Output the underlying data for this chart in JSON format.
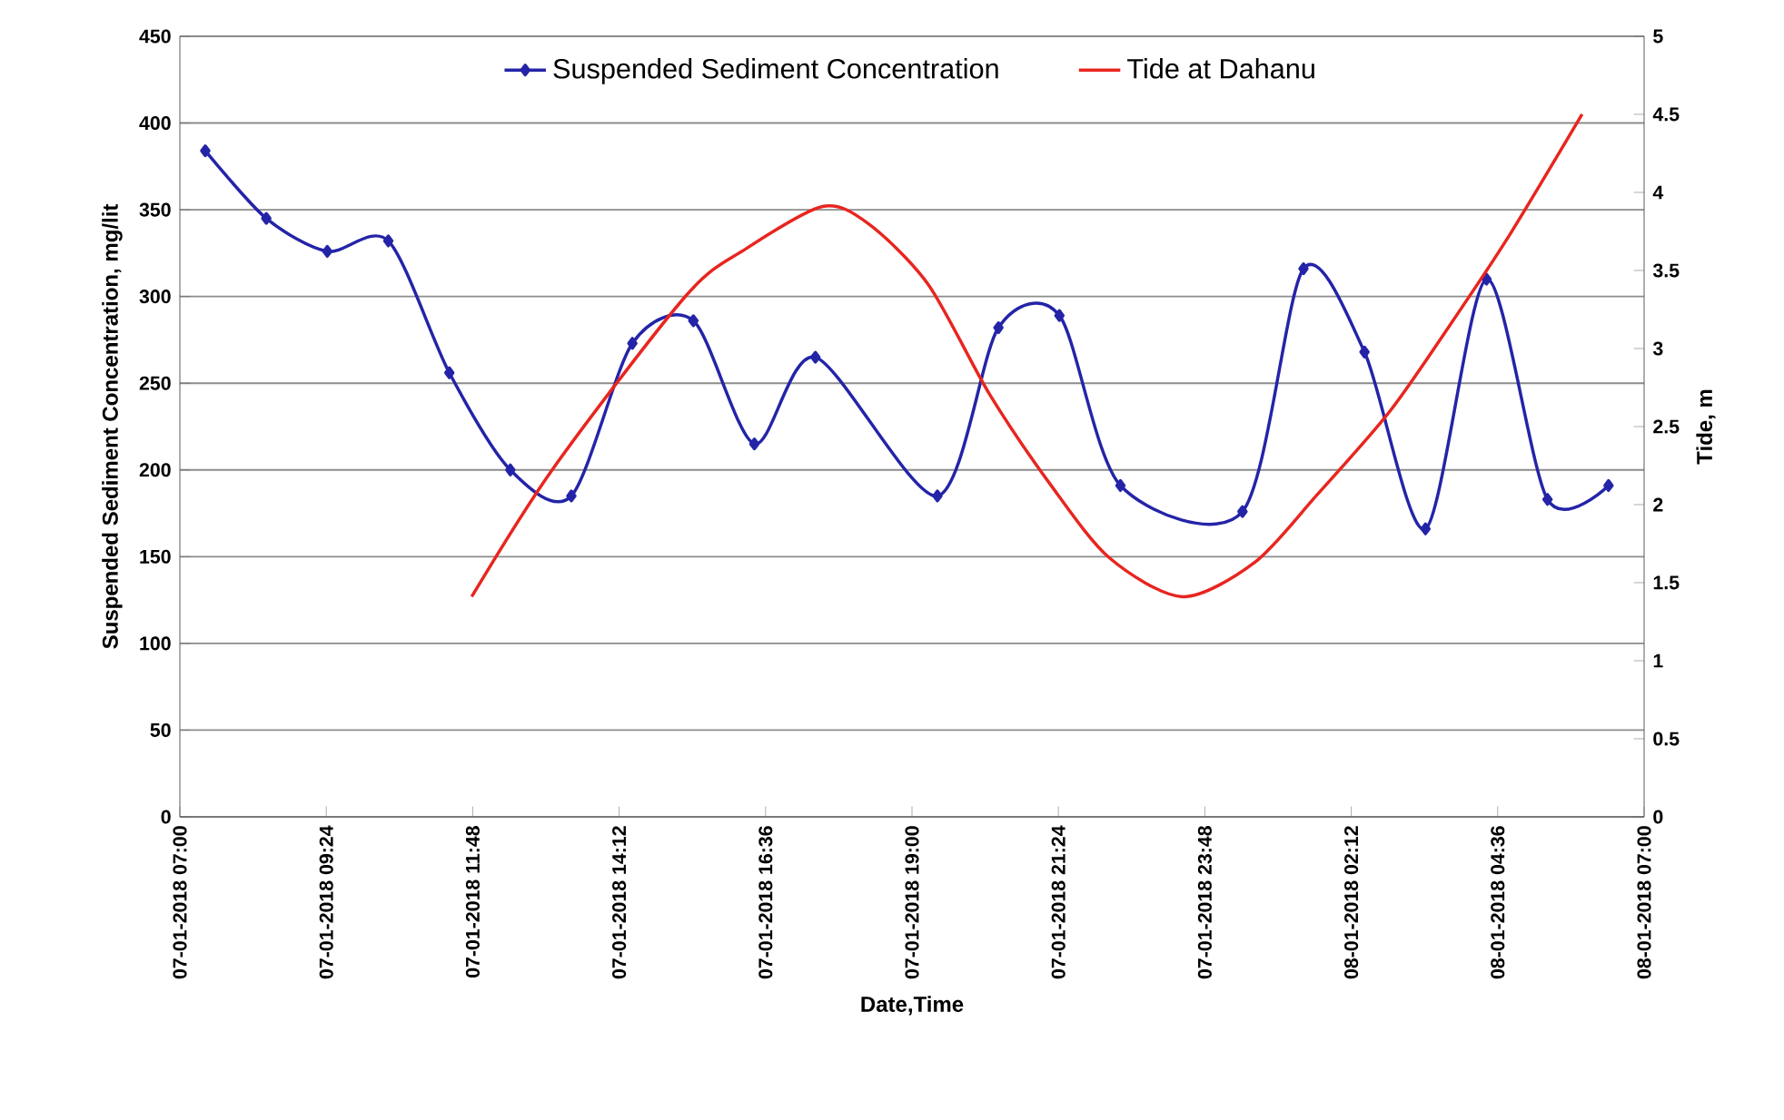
{
  "chart_data": {
    "type": "line",
    "xlabel": "Date,Time",
    "ylabel": "Suspended Sediment Concentration, mg/lit",
    "y2label": "Tide, m",
    "xlim": [
      "2018-01-07T07:00",
      "2018-01-08T07:00"
    ],
    "xticks": [
      {
        "value": "2018-01-07T07:00",
        "label": "07-01-2018 07:00"
      },
      {
        "value": "2018-01-07T09:24",
        "label": "07-01-2018 09:24"
      },
      {
        "value": "2018-01-07T11:48",
        "label": "07-01-2018 11:48"
      },
      {
        "value": "2018-01-07T14:12",
        "label": "07-01-2018 14:12"
      },
      {
        "value": "2018-01-07T16:36",
        "label": "07-01-2018 16:36"
      },
      {
        "value": "2018-01-07T19:00",
        "label": "07-01-2018 19:00"
      },
      {
        "value": "2018-01-07T21:24",
        "label": "07-01-2018 21:24"
      },
      {
        "value": "2018-01-07T23:48",
        "label": "07-01-2018 23:48"
      },
      {
        "value": "2018-01-08T02:12",
        "label": "08-01-2018 02:12"
      },
      {
        "value": "2018-01-08T04:36",
        "label": "08-01-2018 04:36"
      },
      {
        "value": "2018-01-08T07:00",
        "label": "08-01-2018 07:00"
      }
    ],
    "ylim": [
      0,
      450
    ],
    "yticks": [
      0,
      50,
      100,
      150,
      200,
      250,
      300,
      350,
      400,
      450
    ],
    "y2lim": [
      0,
      5
    ],
    "y2ticks": [
      0,
      0.5,
      1,
      1.5,
      2,
      2.5,
      3,
      3.5,
      4,
      4.5,
      5
    ],
    "grid": "y",
    "legend": "top",
    "series": [
      {
        "name": "Suspended Sediment Concentration",
        "color": "#2424a8",
        "marker": "diamond",
        "x": [
          "2018-01-07T07:25",
          "2018-01-07T08:25",
          "2018-01-07T09:25",
          "2018-01-07T10:25",
          "2018-01-07T11:25",
          "2018-01-07T12:25",
          "2018-01-07T13:25",
          "2018-01-07T14:25",
          "2018-01-07T15:25",
          "2018-01-07T16:25",
          "2018-01-07T17:25",
          "2018-01-07T19:25",
          "2018-01-07T20:25",
          "2018-01-07T21:25",
          "2018-01-07T22:25",
          "2018-01-08T00:25",
          "2018-01-08T01:25",
          "2018-01-08T02:25",
          "2018-01-08T03:25",
          "2018-01-08T04:25",
          "2018-01-08T05:25",
          "2018-01-08T06:25"
        ],
        "values": [
          384,
          345,
          326,
          332,
          256,
          200,
          185,
          273,
          286,
          215,
          265,
          185,
          282,
          289,
          191,
          176,
          316,
          268,
          166,
          310,
          183,
          191
        ]
      },
      {
        "name": "Tide at Dahanu",
        "color": "#e8251f",
        "axis": "y2",
        "x": [
          "2018-01-07T11:47",
          "2018-01-07T13:08",
          "2018-01-07T15:18",
          "2018-01-07T16:17",
          "2018-01-07T17:32",
          "2018-01-07T18:17",
          "2018-01-07T19:16",
          "2018-01-07T20:16",
          "2018-01-07T21:16",
          "2018-01-07T22:14",
          "2018-01-07T23:26",
          "2018-01-08T00:37",
          "2018-01-08T01:38",
          "2018-01-08T02:49",
          "2018-01-08T03:48",
          "2018-01-08T04:47",
          "2018-01-08T05:59"
        ],
        "values": [
          1.41,
          2.24,
          3.34,
          3.64,
          3.91,
          3.8,
          3.41,
          2.71,
          2.13,
          1.66,
          1.41,
          1.63,
          2.06,
          2.59,
          3.14,
          3.72,
          4.5
        ]
      }
    ]
  }
}
